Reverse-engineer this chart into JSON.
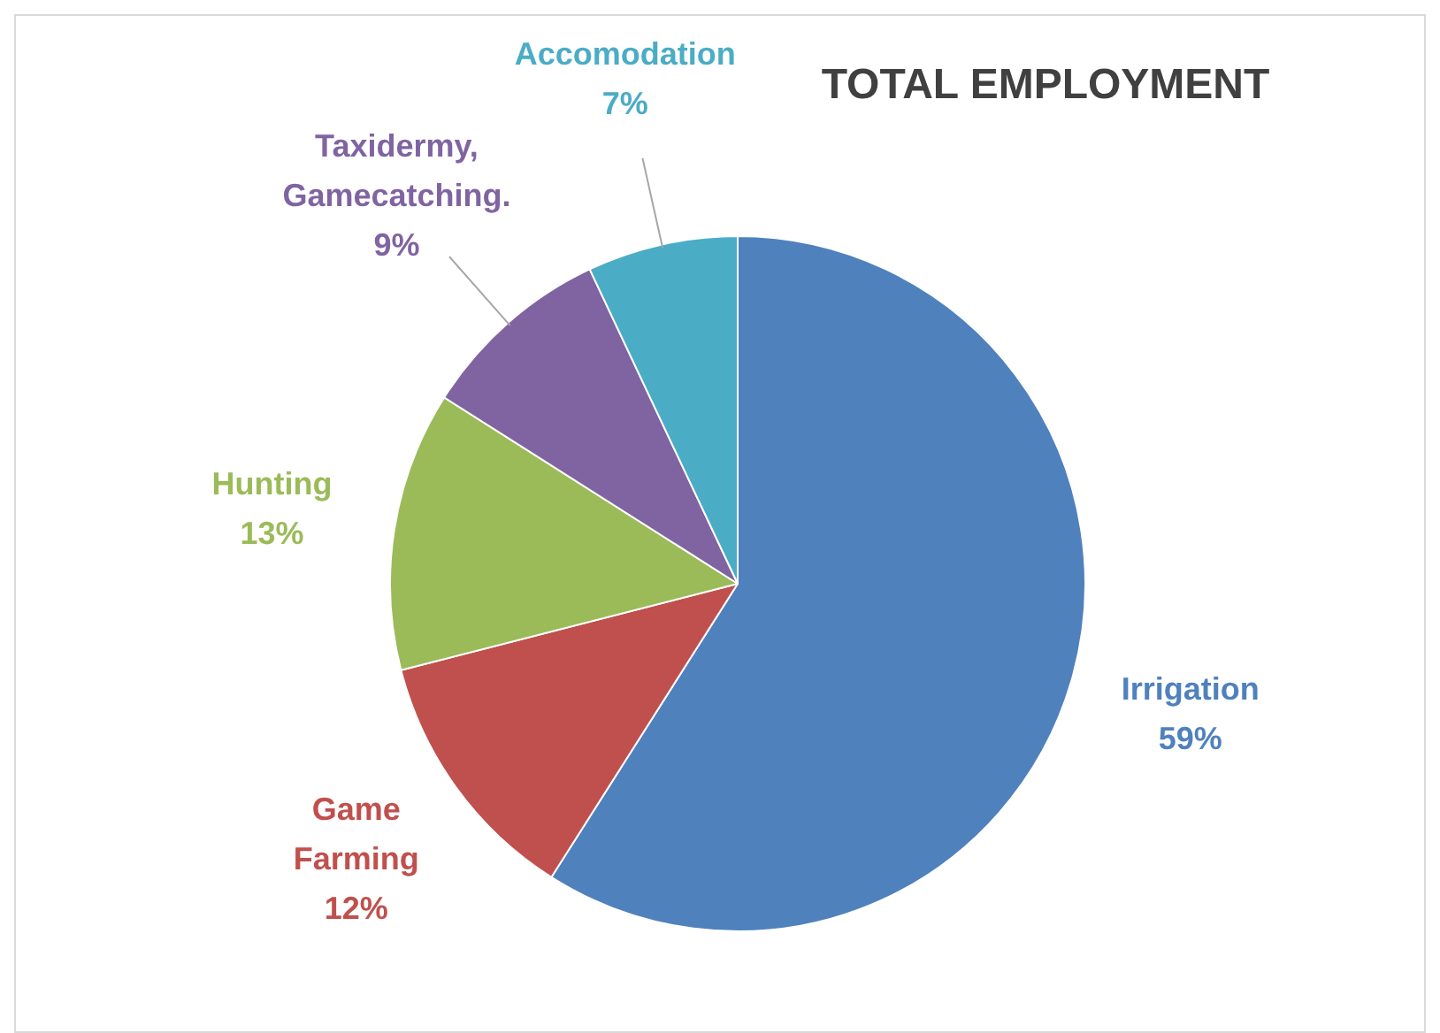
{
  "chart_data": {
    "type": "pie",
    "title": "TOTAL EMPLOYMENT",
    "categories": [
      "Irrigation",
      "Game Farming",
      "Hunting",
      "Taxidermy, Gamecatching.",
      "Accomodation"
    ],
    "values": [
      59,
      12,
      13,
      9,
      7
    ],
    "value_labels": [
      "59%",
      "12%",
      "13%",
      "9%",
      "7%"
    ],
    "colors": [
      "#4f81bd",
      "#c0504d",
      "#9bbb59",
      "#8064a2",
      "#4bacc6"
    ],
    "legend": false
  }
}
